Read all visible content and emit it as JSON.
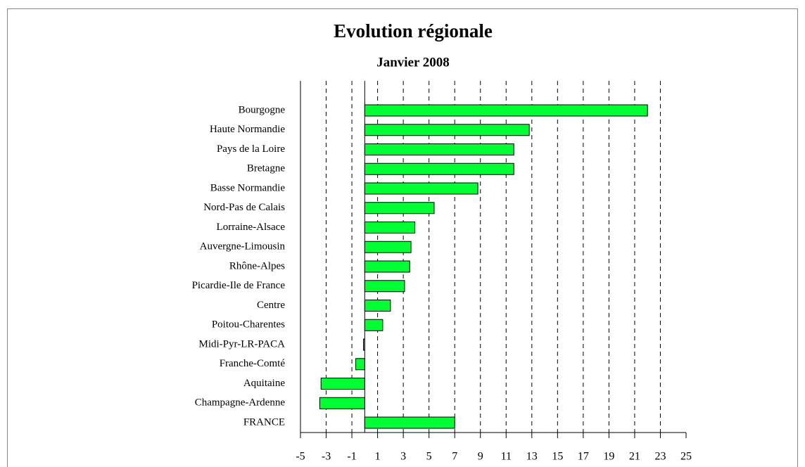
{
  "chart_data": {
    "type": "bar",
    "orientation": "horizontal",
    "title": "Evolution régionale",
    "subtitle": "Janvier 2008",
    "categories": [
      "Bourgogne",
      "Haute Normandie",
      "Pays de la Loire",
      "Bretagne",
      "Basse Normandie",
      "Nord-Pas de Calais",
      "Lorraine-Alsace",
      "Auvergne-Limousin",
      "Rhône-Alpes",
      "Picardie-Ile de France",
      "Centre",
      "Poitou-Charentes",
      "Midi-Pyr-LR-PACA",
      "Franche-Comté",
      "Aquitaine",
      "Champagne-Ardenne",
      "FRANCE"
    ],
    "values": [
      22.0,
      12.8,
      11.6,
      11.6,
      8.8,
      5.4,
      3.9,
      3.6,
      3.5,
      3.1,
      2.0,
      1.4,
      -0.1,
      -0.7,
      -3.4,
      -3.5,
      7.0
    ],
    "color": "#00ff33",
    "xlim": [
      -5,
      25
    ],
    "xticks": [
      -5,
      -3,
      -1,
      1,
      3,
      5,
      7,
      9,
      11,
      13,
      15,
      17,
      19,
      21,
      23,
      25
    ],
    "grid": true
  }
}
